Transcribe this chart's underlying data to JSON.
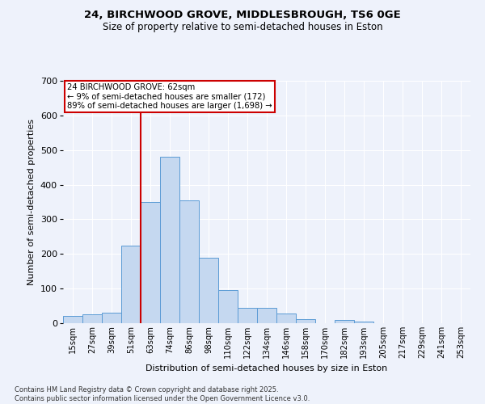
{
  "title_line1": "24, BIRCHWOOD GROVE, MIDDLESBROUGH, TS6 0GE",
  "title_line2": "Size of property relative to semi-detached houses in Eston",
  "xlabel": "Distribution of semi-detached houses by size in Eston",
  "ylabel": "Number of semi-detached properties",
  "footnote": "Contains HM Land Registry data © Crown copyright and database right 2025.\nContains public sector information licensed under the Open Government Licence v3.0.",
  "categories": [
    "15sqm",
    "27sqm",
    "39sqm",
    "51sqm",
    "63sqm",
    "74sqm",
    "86sqm",
    "98sqm",
    "110sqm",
    "122sqm",
    "134sqm",
    "146sqm",
    "158sqm",
    "170sqm",
    "182sqm",
    "193sqm",
    "205sqm",
    "217sqm",
    "229sqm",
    "241sqm",
    "253sqm"
  ],
  "values": [
    20,
    25,
    30,
    225,
    350,
    480,
    355,
    190,
    95,
    45,
    45,
    28,
    12,
    0,
    10,
    5,
    0,
    0,
    0,
    0,
    0
  ],
  "bar_color": "#c5d8f0",
  "bar_edge_color": "#5b9bd5",
  "annotation_text_line1": "24 BIRCHWOOD GROVE: 62sqm",
  "annotation_text_line2": "← 9% of semi-detached houses are smaller (172)",
  "annotation_text_line3": "89% of semi-detached houses are larger (1,698) →",
  "vline_color": "#cc0000",
  "annotation_box_edgecolor": "#cc0000",
  "background_color": "#eef2fb",
  "ylim": [
    0,
    700
  ],
  "yticks": [
    0,
    100,
    200,
    300,
    400,
    500,
    600,
    700
  ],
  "vline_index": 4,
  "title1_fontsize": 9.5,
  "title2_fontsize": 8.5
}
